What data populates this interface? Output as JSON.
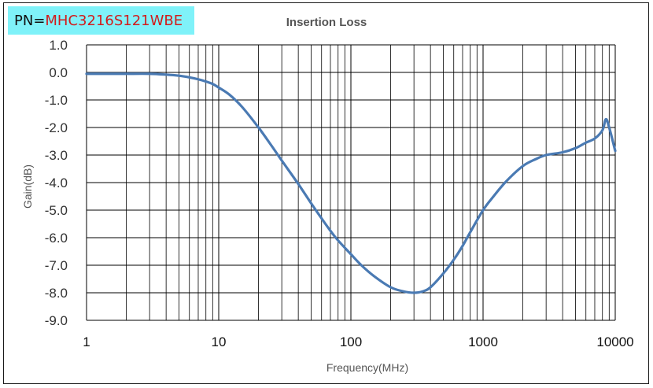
{
  "pn": {
    "label": "PN=",
    "value": "MHC3216S121WBE"
  },
  "colors": {
    "line": "#4a7ab3",
    "grid": "#000000",
    "pn_background": "#7ff2f9",
    "pn_value": "#d21c1c"
  },
  "chart_data": {
    "type": "line",
    "title": "Insertion Loss",
    "xlabel": "Frequency(MHz)",
    "ylabel": "Gain(dB)",
    "xscale": "log",
    "xlim": [
      1,
      10000
    ],
    "ylim": [
      -9.0,
      1.0
    ],
    "grid": true,
    "x_ticks": [
      {
        "value": 1,
        "label": "1"
      },
      {
        "value": 10,
        "label": "10"
      },
      {
        "value": 100,
        "label": "100"
      },
      {
        "value": 1000,
        "label": "1000"
      },
      {
        "value": 10000,
        "label": "10000"
      }
    ],
    "y_ticks": [
      {
        "value": 1.0,
        "label": "1.0"
      },
      {
        "value": 0.0,
        "label": "0.0"
      },
      {
        "value": -1.0,
        "label": "-1.0"
      },
      {
        "value": -2.0,
        "label": "-2.0"
      },
      {
        "value": -3.0,
        "label": "-3.0"
      },
      {
        "value": -4.0,
        "label": "-4.0"
      },
      {
        "value": -5.0,
        "label": "-5.0"
      },
      {
        "value": -6.0,
        "label": "-6.0"
      },
      {
        "value": -7.0,
        "label": "-7.0"
      },
      {
        "value": -8.0,
        "label": "-8.0"
      },
      {
        "value": -9.0,
        "label": "-9.0"
      }
    ],
    "series": [
      {
        "x": [
          1,
          1.2,
          1.5,
          2,
          3,
          4,
          5,
          6,
          7,
          8,
          9,
          10,
          12,
          15,
          20,
          25,
          30,
          40,
          50,
          60,
          70,
          80,
          100,
          120,
          150,
          200,
          250,
          300,
          350,
          400,
          500,
          600,
          700,
          800,
          1000,
          1200,
          1500,
          2000,
          2500,
          3000,
          4000,
          5000,
          6000,
          7000,
          8000,
          8500,
          9000,
          10000
        ],
        "y": [
          -0.05,
          -0.05,
          -0.05,
          -0.05,
          -0.05,
          -0.08,
          -0.12,
          -0.18,
          -0.25,
          -0.33,
          -0.42,
          -0.55,
          -0.8,
          -1.25,
          -2.0,
          -2.65,
          -3.2,
          -4.05,
          -4.75,
          -5.3,
          -5.75,
          -6.1,
          -6.6,
          -7.0,
          -7.4,
          -7.8,
          -7.95,
          -8.0,
          -7.95,
          -7.8,
          -7.3,
          -6.8,
          -6.3,
          -5.8,
          -5.0,
          -4.5,
          -3.95,
          -3.4,
          -3.15,
          -3.0,
          -2.9,
          -2.75,
          -2.55,
          -2.4,
          -2.1,
          -1.7,
          -2.0,
          -2.85
        ]
      }
    ]
  }
}
